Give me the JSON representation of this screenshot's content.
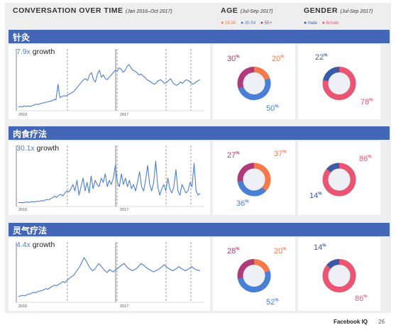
{
  "headers": {
    "conversation": "CONVERSATION OVER TIME",
    "conversation_sub": "(Jan 2016–Oct 2017)",
    "age": "AGE",
    "age_sub": "(Jul-Sep 2017)",
    "gender": "GENDER",
    "gender_sub": "(Jul-Sep 2017)"
  },
  "age_legend": [
    "18-34",
    "35-54",
    "55+"
  ],
  "gender_legend": [
    "male",
    "female"
  ],
  "colors": {
    "band": "#4367b6",
    "line": "#4a7fd6",
    "age_18_34": "#f47a4b",
    "age_35_54": "#4a7fd6",
    "age_55_plus": "#b03a7a",
    "male": "#3a5aa8",
    "female": "#ea5573"
  },
  "year_labels": [
    "2016",
    "2017"
  ],
  "sections": [
    {
      "title": "针灸",
      "growth": "7.9x",
      "growth_word": "growth",
      "age": {
        "a18_34": "20",
        "a35_54": "50",
        "a55": "30"
      },
      "gender": {
        "male": "22",
        "female": "78"
      }
    },
    {
      "title": "肉食疗法",
      "growth": "30.1x",
      "growth_word": "growth",
      "age": {
        "a18_34": "37",
        "a35_54": "36",
        "a55": "27"
      },
      "gender": {
        "male": "14",
        "female": "86"
      }
    },
    {
      "title": "灵气疗法",
      "growth": "4.4x",
      "growth_word": "growth",
      "age": {
        "a18_34": "20",
        "a35_54": "52",
        "a55": "28"
      },
      "gender": {
        "male": "14",
        "female": "86"
      }
    }
  ],
  "footer": {
    "brand": "Facebook IQ",
    "page": "26"
  },
  "chart_data": [
    {
      "type": "line",
      "title": "针灸",
      "annotation": "7.9x growth",
      "x_ticks": [
        "2016",
        "2017"
      ],
      "values": [
        2,
        3,
        2,
        4,
        3,
        4,
        3,
        5,
        6,
        8,
        7,
        9,
        10,
        11,
        12,
        13,
        14,
        15,
        18,
        17,
        50,
        22,
        24,
        26,
        25,
        28,
        30,
        32,
        35,
        40,
        45,
        50,
        55,
        60,
        62,
        58,
        70,
        75,
        60,
        55,
        72,
        80,
        65,
        70,
        62,
        60,
        65,
        70,
        75,
        80,
        78,
        85,
        82,
        76,
        80,
        88,
        92,
        85,
        80,
        78,
        75,
        70,
        72,
        68,
        65,
        60,
        58,
        55,
        52,
        50,
        55,
        58,
        60,
        56,
        52,
        54,
        58,
        62,
        55,
        50,
        48,
        50,
        55,
        52,
        56,
        60,
        58,
        55,
        50,
        52,
        55,
        58,
        60
      ]
    },
    {
      "type": "line",
      "title": "肉食疗法",
      "annotation": "30.1x growth",
      "x_ticks": [
        "2016",
        "2017"
      ],
      "values": [
        2,
        3,
        2,
        3,
        4,
        3,
        4,
        5,
        4,
        6,
        5,
        7,
        6,
        8,
        10,
        9,
        12,
        14,
        18,
        15,
        20,
        22,
        18,
        25,
        30,
        28,
        35,
        45,
        30,
        55,
        20,
        40,
        60,
        30,
        50,
        25,
        65,
        35,
        55,
        45,
        40,
        60,
        50,
        70,
        40,
        55,
        45,
        60,
        90,
        50,
        40,
        70,
        45,
        60,
        40,
        55,
        35,
        45,
        30,
        50,
        75,
        40,
        30,
        55,
        90,
        45,
        30,
        50,
        100,
        40,
        20,
        35,
        45,
        30,
        60,
        35,
        25,
        40,
        80,
        30,
        20,
        45,
        35,
        25,
        30,
        50,
        40,
        95,
        30,
        20,
        25
      ]
    },
    {
      "type": "line",
      "title": "灵气疗法",
      "annotation": "4.4x growth",
      "x_ticks": [
        "2016",
        "2017"
      ],
      "values": [
        5,
        6,
        7,
        6,
        8,
        9,
        10,
        12,
        11,
        13,
        14,
        15,
        16,
        18,
        17,
        20,
        22,
        24,
        23,
        25,
        27,
        30,
        28,
        32,
        35,
        38,
        40,
        45,
        50,
        55,
        62,
        70,
        65,
        58,
        52,
        48,
        50,
        55,
        60,
        56,
        52,
        48,
        45,
        50,
        48,
        46,
        50,
        52,
        55,
        58,
        60,
        56,
        52,
        50,
        48,
        50,
        52,
        56,
        60,
        58,
        55,
        52,
        50,
        48,
        46,
        48,
        50,
        52,
        55,
        58,
        55,
        52,
        50,
        48,
        50,
        52,
        55,
        52,
        50,
        48,
        50,
        52,
        55,
        52,
        50,
        49,
        48
      ]
    },
    {
      "type": "pie",
      "title": "AGE",
      "categories": [
        "18-34",
        "35-54",
        "55+"
      ],
      "series": [
        {
          "name": "针灸",
          "values": [
            20,
            50,
            30
          ]
        },
        {
          "name": "肉食疗法",
          "values": [
            37,
            36,
            27
          ]
        },
        {
          "name": "灵气疗法",
          "values": [
            20,
            52,
            28
          ]
        }
      ]
    },
    {
      "type": "pie",
      "title": "GENDER",
      "categories": [
        "male",
        "female"
      ],
      "series": [
        {
          "name": "针灸",
          "values": [
            22,
            78
          ]
        },
        {
          "name": "肉食疗法",
          "values": [
            14,
            86
          ]
        },
        {
          "name": "灵气疗法",
          "values": [
            14,
            86
          ]
        }
      ]
    }
  ]
}
